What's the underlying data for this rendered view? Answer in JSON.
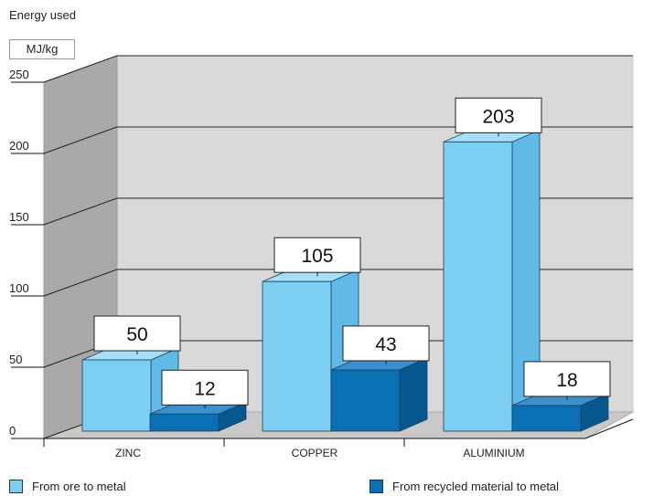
{
  "chart_data": {
    "type": "bar",
    "title": "Energy used",
    "ylabel": "MJ/kg",
    "xlabel": "",
    "ylim": [
      0,
      250
    ],
    "yticks": [
      0,
      50,
      100,
      150,
      200,
      250
    ],
    "categories": [
      "ZINC",
      "COPPER",
      "ALUMINIUM"
    ],
    "series": [
      {
        "name": "From ore to metal",
        "values": [
          50,
          105,
          203
        ],
        "color": "#7ccff2",
        "side_color": "#60b9e6",
        "top_color": "#a6e0f8"
      },
      {
        "name": "From recycled material to metal",
        "values": [
          12,
          43,
          18
        ],
        "color": "#0a6fb5",
        "side_color": "#07578f",
        "top_color": "#3d8fcc"
      }
    ],
    "grid": true,
    "legend_position": "bottom",
    "data_labels": true,
    "style": "3d"
  }
}
